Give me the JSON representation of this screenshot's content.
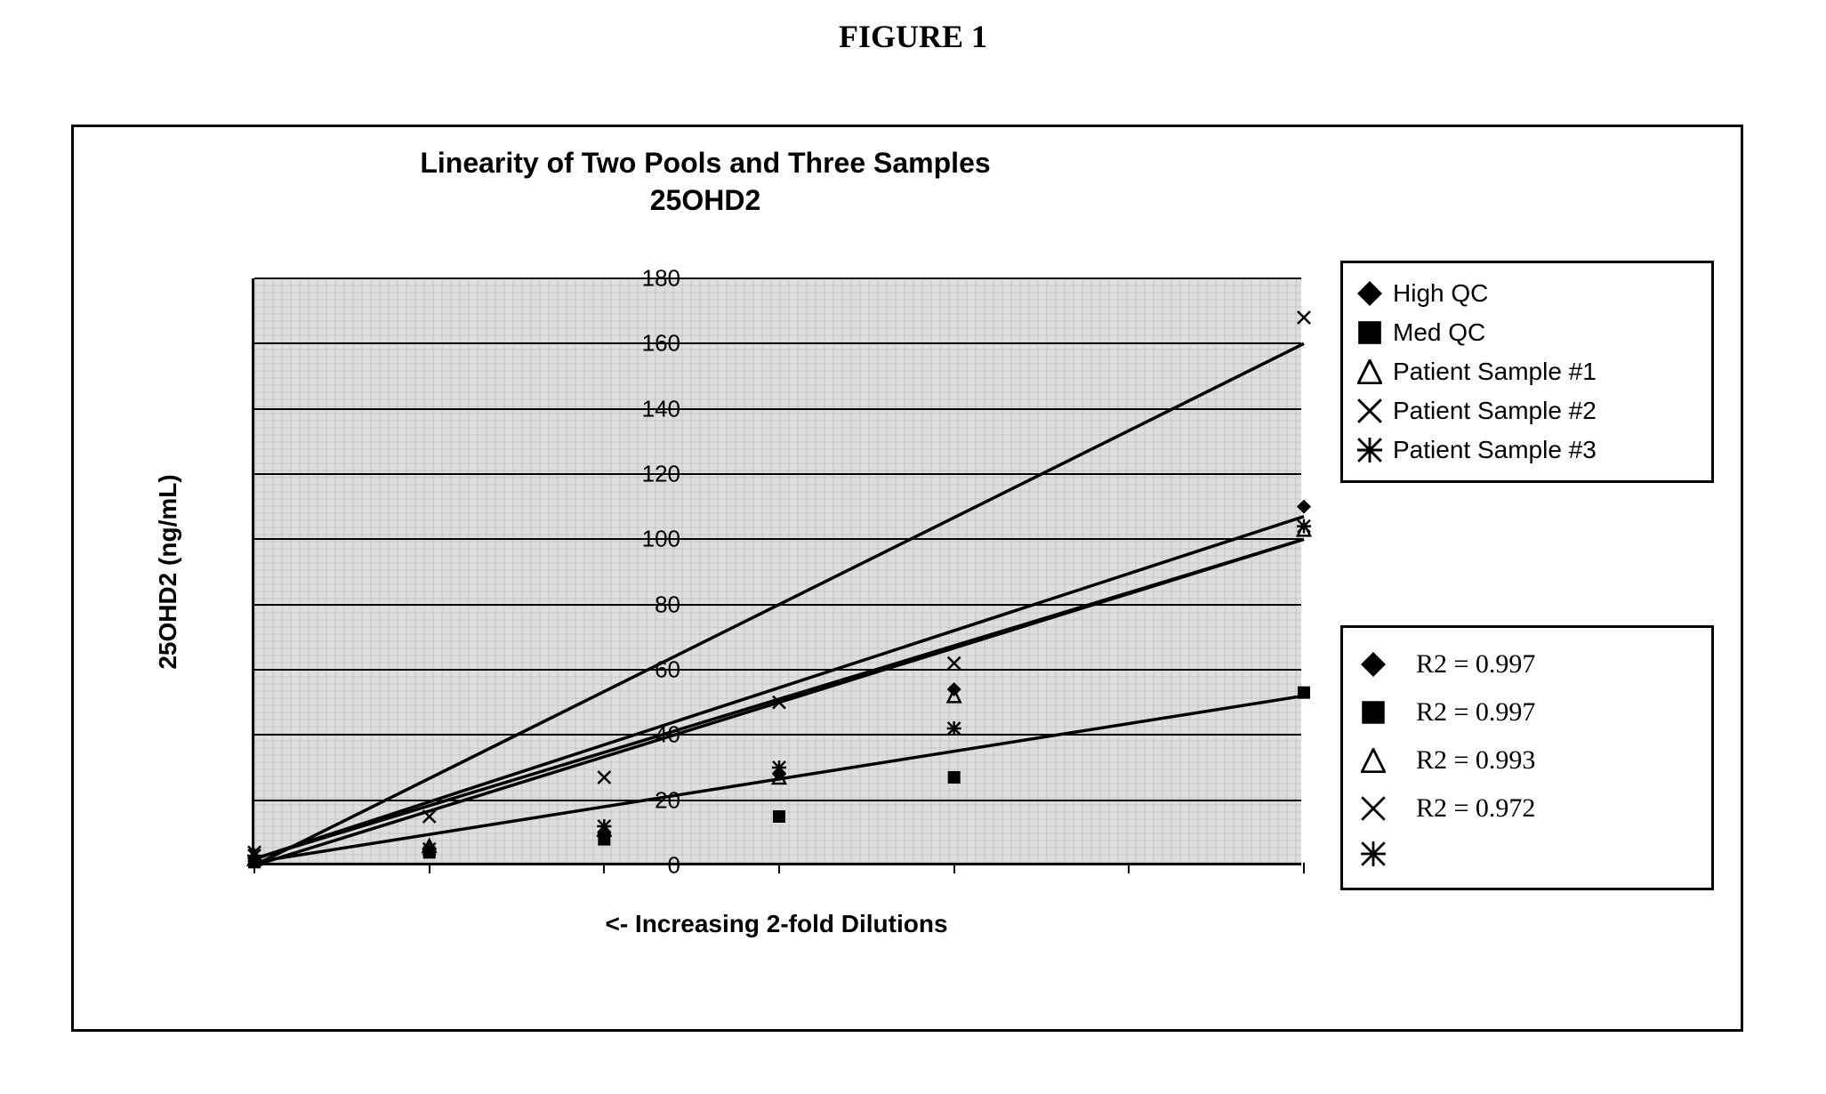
{
  "figure_label": "FIGURE 1",
  "chart": {
    "type": "scatter-line",
    "title_line1": "Linearity of Two Pools and Three Samples",
    "title_line2": "25OHD2",
    "title_fontsize": 32,
    "title_fontweight": "bold",
    "ylabel": "25OHD2 (ng/mL)",
    "xlabel": "<-  Increasing 2-fold Dilutions",
    "label_fontsize": 28,
    "label_fontweight": "bold",
    "tick_fontsize": 26,
    "background_color": "#dedede",
    "frame_color": "#000000",
    "grid_color": "#000000",
    "xlim": [
      0,
      6
    ],
    "ylim": [
      0,
      180
    ],
    "ytick_step": 20,
    "yticks": [
      0,
      20,
      40,
      60,
      80,
      100,
      120,
      140,
      160,
      180
    ],
    "x_positions": [
      0,
      1,
      2,
      3,
      4,
      5,
      6
    ],
    "line_width": 3.5,
    "marker_size": 16,
    "series": [
      {
        "name": "High QC",
        "marker": "diamond-filled",
        "color": "#000000",
        "x": [
          0,
          1,
          2,
          3,
          4,
          6
        ],
        "y": [
          2,
          5,
          10,
          28,
          54,
          110
        ],
        "fit_start": [
          0,
          2
        ],
        "fit_end": [
          6,
          107
        ]
      },
      {
        "name": "Med QC",
        "marker": "square-filled",
        "color": "#000000",
        "x": [
          0,
          1,
          2,
          3,
          4,
          6
        ],
        "y": [
          1,
          4,
          8,
          15,
          27,
          53
        ],
        "fit_start": [
          0,
          1
        ],
        "fit_end": [
          6,
          52
        ]
      },
      {
        "name": "Patient Sample #1",
        "marker": "triangle-open",
        "color": "#000000",
        "x": [
          0,
          1,
          2,
          3,
          4,
          6
        ],
        "y": [
          2,
          6,
          11,
          27,
          52,
          103
        ],
        "fit_start": [
          0,
          0
        ],
        "fit_end": [
          6,
          100
        ]
      },
      {
        "name": "Patient Sample #2",
        "marker": "x",
        "color": "#000000",
        "x": [
          0,
          1,
          2,
          3,
          4,
          6
        ],
        "y": [
          4,
          15,
          27,
          50,
          62,
          168
        ],
        "fit_start": [
          0,
          0
        ],
        "fit_end": [
          6,
          160
        ]
      },
      {
        "name": "Patient Sample #3",
        "marker": "asterisk",
        "color": "#000000",
        "x": [
          0,
          1,
          2,
          3,
          4,
          6
        ],
        "y": [
          3,
          5,
          12,
          30,
          42,
          104
        ],
        "fit_start": [
          0,
          2
        ],
        "fit_end": [
          6,
          100
        ]
      }
    ],
    "r2_legend": [
      {
        "marker": "diamond-filled",
        "label": "R2 = 0.997"
      },
      {
        "marker": "square-filled",
        "label": "R2 = 0.997"
      },
      {
        "marker": "triangle-open",
        "label": "R2 = 0.993"
      },
      {
        "marker": "x",
        "label": "R2 = 0.972"
      },
      {
        "marker": "asterisk",
        "label": ""
      }
    ]
  }
}
